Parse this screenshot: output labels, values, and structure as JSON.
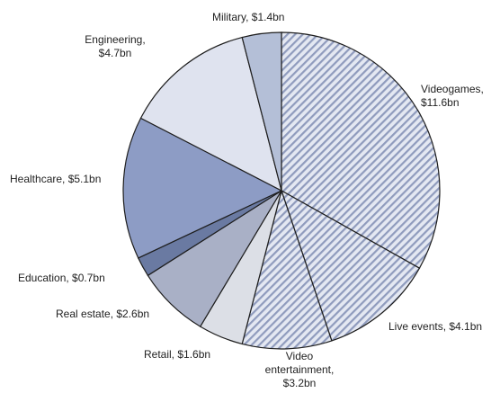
{
  "chart_data": {
    "type": "pie",
    "unit": "$bn",
    "start_angle_deg": 0,
    "direction": "clockwise",
    "slices": [
      {
        "label": "Videogames",
        "value": 11.6,
        "label_lines": [
          "Videogames,",
          "$11.6bn"
        ],
        "fill": "hatch",
        "color": "#e4e8f2",
        "stroke_color": "#8f9bbd"
      },
      {
        "label": "Live events",
        "value": 4.1,
        "label_lines": [
          "Live events, $4.1bn"
        ],
        "fill": "hatch",
        "color": "#e4e8f2",
        "stroke_color": "#8f9bbd"
      },
      {
        "label": "Video entertainment",
        "value": 3.2,
        "label_lines": [
          "Video",
          "entertainment,",
          "$3.2bn"
        ],
        "fill": "hatch",
        "color": "#e4e8f2",
        "stroke_color": "#8f9bbd"
      },
      {
        "label": "Retail",
        "value": 1.6,
        "label_lines": [
          "Retail, $1.6bn"
        ],
        "fill": "solid",
        "color": "#dcdfe6"
      },
      {
        "label": "Real estate",
        "value": 2.6,
        "label_lines": [
          "Real estate, $2.6bn"
        ],
        "fill": "solid",
        "color": "#a9b0c6"
      },
      {
        "label": "Education",
        "value": 0.7,
        "label_lines": [
          "Education, $0.7bn"
        ],
        "fill": "solid",
        "color": "#6a7aa2"
      },
      {
        "label": "Healthcare",
        "value": 5.1,
        "label_lines": [
          "Healthcare, $5.1bn"
        ],
        "fill": "solid",
        "color": "#8d9cc5"
      },
      {
        "label": "Engineering",
        "value": 4.7,
        "label_lines": [
          "Engineering,",
          "$4.7bn"
        ],
        "fill": "solid",
        "color": "#dfe3ef"
      },
      {
        "label": "Military",
        "value": 1.4,
        "label_lines": [
          "Military, $1.4bn"
        ],
        "fill": "solid",
        "color": "#b4bfd7"
      }
    ]
  }
}
